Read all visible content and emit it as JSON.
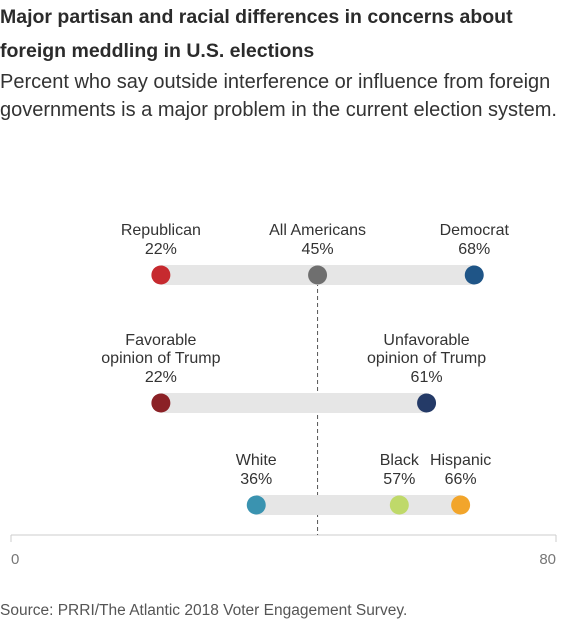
{
  "title": "Major partisan and racial differences in concerns about foreign meddling in U.S. elections",
  "subtitle": "Percent who say outside interference or influence from foreign governments is a major problem in the current election system.",
  "source": "Source: PRRI/The Atlantic 2018 Voter Engagement Survey.",
  "chart_data": {
    "type": "dot",
    "xlim": [
      0,
      80
    ],
    "x_ticks": [
      "0",
      "80"
    ],
    "reference": {
      "name": "All Americans",
      "value": 45
    },
    "colors": {
      "bar": "#e6e6e6",
      "axis": "#cccccc",
      "reference": "#555555"
    },
    "rows": [
      {
        "points": [
          {
            "name": "Republican",
            "value": 22,
            "label": "22%",
            "color": "#c62a2f",
            "lines": [
              "Republican"
            ]
          },
          {
            "name": "All Americans",
            "value": 45,
            "label": "45%",
            "color": "#6f6f6f",
            "lines": [
              "All Americans"
            ]
          },
          {
            "name": "Democrat",
            "value": 68,
            "label": "68%",
            "color": "#1f5587",
            "lines": [
              "Democrat"
            ]
          }
        ]
      },
      {
        "points": [
          {
            "name": "Favorable opinion of Trump",
            "value": 22,
            "label": "22%",
            "color": "#8b2126",
            "lines": [
              "Favorable",
              "opinion of Trump"
            ]
          },
          {
            "name": "Unfavorable opinion of Trump",
            "value": 61,
            "label": "61%",
            "color": "#243a67",
            "lines": [
              "Unfavorable",
              "opinion of Trump"
            ]
          }
        ]
      },
      {
        "points": [
          {
            "name": "White",
            "value": 36,
            "label": "36%",
            "color": "#3a93b0",
            "lines": [
              "White"
            ]
          },
          {
            "name": "Black",
            "value": 57,
            "label": "57%",
            "color": "#bfd96a",
            "lines": [
              "Black"
            ]
          },
          {
            "name": "Hispanic",
            "value": 66,
            "label": "66%",
            "color": "#f2a52b",
            "lines": [
              "Hispanic"
            ]
          }
        ]
      }
    ]
  }
}
